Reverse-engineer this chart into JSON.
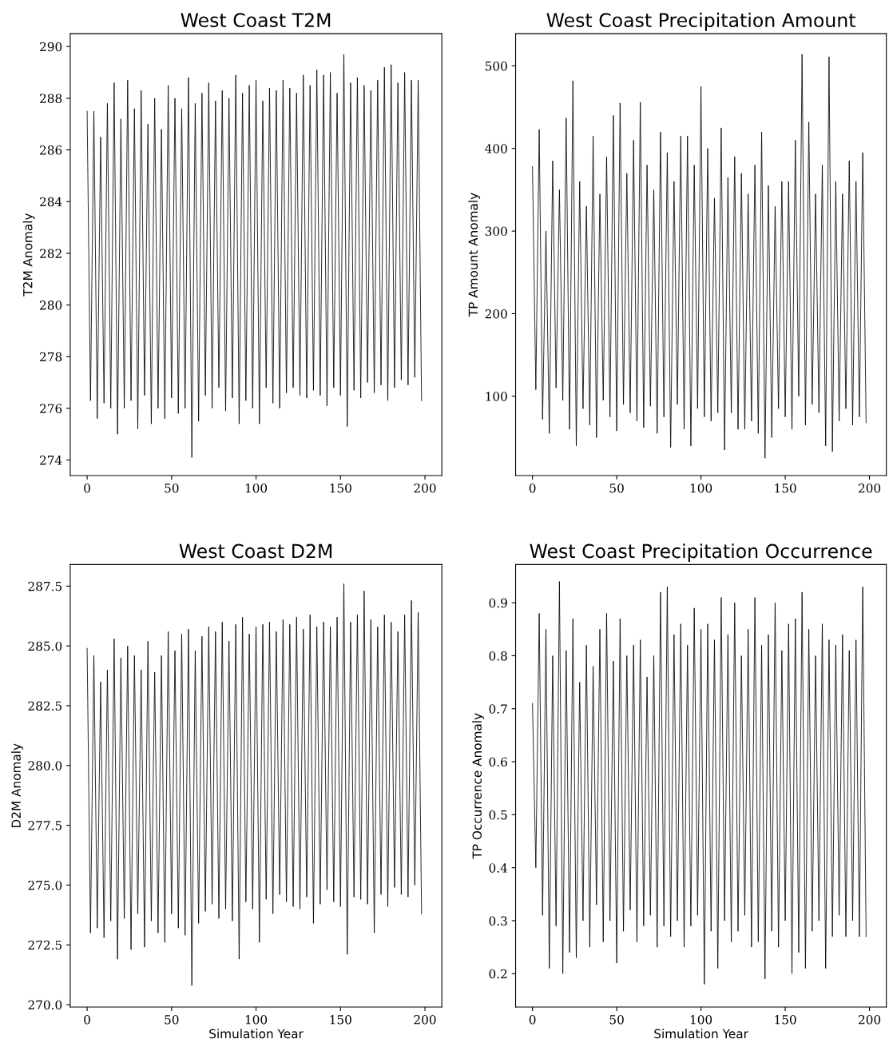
{
  "chart_data": [
    {
      "type": "line",
      "title": "West Coast T2M",
      "ylabel": "T2M Anomaly",
      "x": [
        0,
        2,
        4,
        6,
        8,
        10,
        12,
        14,
        16,
        18,
        20,
        22,
        24,
        26,
        28,
        30,
        32,
        34,
        36,
        38,
        40,
        42,
        44,
        46,
        48,
        50,
        52,
        54,
        56,
        58,
        60,
        62,
        64,
        66,
        68,
        70,
        72,
        74,
        76,
        78,
        80,
        82,
        84,
        86,
        88,
        90,
        92,
        94,
        96,
        98,
        100,
        102,
        104,
        106,
        108,
        110,
        112,
        114,
        116,
        118,
        120,
        122,
        124,
        126,
        128,
        130,
        132,
        134,
        136,
        138,
        140,
        142,
        144,
        146,
        148,
        150,
        152,
        154,
        156,
        158,
        160,
        162,
        164,
        166,
        168,
        170,
        172,
        174,
        176,
        178,
        180,
        182,
        184,
        186,
        188,
        190,
        192,
        194,
        196,
        198
      ],
      "series": [
        {
          "color": "#000000",
          "values": [
            287.5,
            276.3,
            287.5,
            275.6,
            286.5,
            276.2,
            287.8,
            276.0,
            288.6,
            275.0,
            287.2,
            276.0,
            288.7,
            276.3,
            287.6,
            275.2,
            288.3,
            276.5,
            287.0,
            275.4,
            288.0,
            276.0,
            286.8,
            275.6,
            288.5,
            276.4,
            288.0,
            275.8,
            287.6,
            276.0,
            288.8,
            274.1,
            287.8,
            275.5,
            288.2,
            276.5,
            288.6,
            276.0,
            287.9,
            276.8,
            288.3,
            275.9,
            288.0,
            276.4,
            288.9,
            275.4,
            288.2,
            276.3,
            288.5,
            276.0,
            288.7,
            275.4,
            287.9,
            276.8,
            288.4,
            276.2,
            288.3,
            276.0,
            288.7,
            276.6,
            288.4,
            276.8,
            288.2,
            276.5,
            288.9,
            276.4,
            288.5,
            276.7,
            289.1,
            276.5,
            288.9,
            276.1,
            289.0,
            276.8,
            288.2,
            276.5,
            289.7,
            275.3,
            288.6,
            276.7,
            288.8,
            276.4,
            288.5,
            277.0,
            288.3,
            276.6,
            288.7,
            276.9,
            289.2,
            276.3,
            289.3,
            276.8,
            288.6,
            277.1,
            289.0,
            276.9,
            288.7,
            277.2,
            288.7,
            276.3
          ]
        }
      ],
      "xlim": [
        -10,
        210
      ],
      "xticks": [
        0,
        50,
        100,
        150,
        200
      ],
      "ylim": [
        273.4,
        290.5
      ],
      "yticks": [
        274,
        276,
        278,
        280,
        282,
        284,
        286,
        288,
        290
      ],
      "grid": false,
      "legend": false,
      "marker": "none",
      "line_style": "solid"
    },
    {
      "type": "line",
      "title": "West Coast Precipitation Amount",
      "ylabel": "TP Amount Anomaly",
      "x": [
        0,
        2,
        4,
        6,
        8,
        10,
        12,
        14,
        16,
        18,
        20,
        22,
        24,
        26,
        28,
        30,
        32,
        34,
        36,
        38,
        40,
        42,
        44,
        46,
        48,
        50,
        52,
        54,
        56,
        58,
        60,
        62,
        64,
        66,
        68,
        70,
        72,
        74,
        76,
        78,
        80,
        82,
        84,
        86,
        88,
        90,
        92,
        94,
        96,
        98,
        100,
        102,
        104,
        106,
        108,
        110,
        112,
        114,
        116,
        118,
        120,
        122,
        124,
        126,
        128,
        130,
        132,
        134,
        136,
        138,
        140,
        142,
        144,
        146,
        148,
        150,
        152,
        154,
        156,
        158,
        160,
        162,
        164,
        166,
        168,
        170,
        172,
        174,
        176,
        178,
        180,
        182,
        184,
        186,
        188,
        190,
        192,
        194,
        196,
        198
      ],
      "series": [
        {
          "color": "#000000",
          "values": [
            378,
            108,
            423,
            72,
            300,
            55,
            385,
            110,
            350,
            95,
            437,
            60,
            482,
            40,
            360,
            85,
            330,
            65,
            415,
            50,
            345,
            95,
            390,
            75,
            440,
            58,
            455,
            90,
            370,
            80,
            410,
            70,
            456,
            62,
            380,
            88,
            350,
            55,
            420,
            75,
            395,
            38,
            360,
            90,
            415,
            60,
            415,
            40,
            380,
            85,
            475,
            75,
            400,
            70,
            340,
            80,
            425,
            35,
            365,
            80,
            390,
            60,
            370,
            60,
            345,
            70,
            380,
            55,
            420,
            25,
            355,
            50,
            330,
            85,
            360,
            75,
            360,
            60,
            410,
            100,
            514,
            65,
            432,
            90,
            345,
            80,
            380,
            40,
            511,
            33,
            360,
            70,
            345,
            85,
            385,
            65,
            360,
            75,
            395,
            68
          ]
        }
      ],
      "xlim": [
        -10,
        210
      ],
      "xticks": [
        0,
        50,
        100,
        150,
        200
      ],
      "ylim": [
        4,
        539
      ],
      "yticks": [
        100,
        200,
        300,
        400,
        500
      ],
      "grid": false,
      "legend": false,
      "marker": "none",
      "line_style": "solid"
    },
    {
      "type": "line",
      "title": "West Coast D2M",
      "ylabel": "D2M Anomaly",
      "xlabel": "Simulation Year",
      "x": [
        0,
        2,
        4,
        6,
        8,
        10,
        12,
        14,
        16,
        18,
        20,
        22,
        24,
        26,
        28,
        30,
        32,
        34,
        36,
        38,
        40,
        42,
        44,
        46,
        48,
        50,
        52,
        54,
        56,
        58,
        60,
        62,
        64,
        66,
        68,
        70,
        72,
        74,
        76,
        78,
        80,
        82,
        84,
        86,
        88,
        90,
        92,
        94,
        96,
        98,
        100,
        102,
        104,
        106,
        108,
        110,
        112,
        114,
        116,
        118,
        120,
        122,
        124,
        126,
        128,
        130,
        132,
        134,
        136,
        138,
        140,
        142,
        144,
        146,
        148,
        150,
        152,
        154,
        156,
        158,
        160,
        162,
        164,
        166,
        168,
        170,
        172,
        174,
        176,
        178,
        180,
        182,
        184,
        186,
        188,
        190,
        192,
        194,
        196,
        198
      ],
      "series": [
        {
          "color": "#000000",
          "values": [
            284.9,
            273.0,
            284.6,
            273.2,
            283.5,
            272.8,
            284.0,
            273.5,
            285.3,
            271.9,
            284.5,
            273.6,
            285.0,
            272.3,
            284.6,
            273.8,
            284.0,
            272.4,
            285.2,
            273.5,
            283.9,
            273.0,
            284.6,
            272.6,
            285.6,
            273.8,
            284.8,
            273.2,
            285.5,
            272.9,
            285.7,
            270.8,
            284.8,
            273.4,
            285.4,
            273.9,
            285.8,
            274.2,
            285.6,
            273.6,
            286.0,
            274.0,
            285.2,
            273.5,
            285.9,
            271.9,
            286.2,
            274.3,
            285.5,
            274.0,
            285.8,
            272.6,
            285.9,
            274.4,
            286.0,
            273.8,
            285.6,
            274.6,
            286.1,
            274.3,
            285.9,
            274.1,
            286.2,
            274.0,
            285.7,
            274.5,
            286.3,
            273.4,
            285.8,
            274.2,
            286.0,
            274.8,
            285.8,
            274.3,
            286.2,
            274.1,
            287.6,
            272.1,
            286.0,
            274.5,
            286.3,
            274.4,
            287.3,
            274.2,
            286.1,
            273.0,
            285.8,
            274.6,
            286.3,
            274.1,
            286.0,
            274.9,
            285.6,
            274.6,
            286.3,
            274.5,
            286.9,
            275.0,
            286.4,
            273.8
          ]
        }
      ],
      "xlim": [
        -10,
        210
      ],
      "xticks": [
        0,
        50,
        100,
        150,
        200
      ],
      "ylim": [
        269.9,
        288.4
      ],
      "yticks": [
        {
          "value": 270,
          "label": "270.0"
        },
        272.5,
        {
          "value": 275,
          "label": "275.0"
        },
        277.5,
        {
          "value": 280,
          "label": "280.0"
        },
        282.5,
        {
          "value": 285,
          "label": "285.0"
        },
        287.5
      ],
      "grid": false,
      "legend": false,
      "marker": "none",
      "line_style": "solid"
    },
    {
      "type": "line",
      "title": "West Coast Precipitation Occurrence",
      "ylabel": "TP Occurrence Anomaly",
      "xlabel": "Simulation Year",
      "x": [
        0,
        2,
        4,
        6,
        8,
        10,
        12,
        14,
        16,
        18,
        20,
        22,
        24,
        26,
        28,
        30,
        32,
        34,
        36,
        38,
        40,
        42,
        44,
        46,
        48,
        50,
        52,
        54,
        56,
        58,
        60,
        62,
        64,
        66,
        68,
        70,
        72,
        74,
        76,
        78,
        80,
        82,
        84,
        86,
        88,
        90,
        92,
        94,
        96,
        98,
        100,
        102,
        104,
        106,
        108,
        110,
        112,
        114,
        116,
        118,
        120,
        122,
        124,
        126,
        128,
        130,
        132,
        134,
        136,
        138,
        140,
        142,
        144,
        146,
        148,
        150,
        152,
        154,
        156,
        158,
        160,
        162,
        164,
        166,
        168,
        170,
        172,
        174,
        176,
        178,
        180,
        182,
        184,
        186,
        188,
        190,
        192,
        194,
        196,
        198
      ],
      "series": [
        {
          "color": "#000000",
          "values": [
            0.71,
            0.4,
            0.88,
            0.31,
            0.85,
            0.21,
            0.8,
            0.29,
            0.94,
            0.2,
            0.81,
            0.24,
            0.87,
            0.23,
            0.75,
            0.3,
            0.82,
            0.25,
            0.78,
            0.33,
            0.85,
            0.26,
            0.88,
            0.3,
            0.79,
            0.22,
            0.87,
            0.28,
            0.8,
            0.32,
            0.82,
            0.26,
            0.83,
            0.29,
            0.76,
            0.31,
            0.8,
            0.25,
            0.92,
            0.29,
            0.93,
            0.27,
            0.84,
            0.3,
            0.86,
            0.25,
            0.82,
            0.29,
            0.89,
            0.31,
            0.85,
            0.18,
            0.86,
            0.28,
            0.83,
            0.21,
            0.91,
            0.3,
            0.84,
            0.26,
            0.9,
            0.28,
            0.8,
            0.31,
            0.85,
            0.25,
            0.91,
            0.26,
            0.82,
            0.19,
            0.84,
            0.28,
            0.9,
            0.25,
            0.81,
            0.3,
            0.86,
            0.2,
            0.87,
            0.24,
            0.92,
            0.21,
            0.85,
            0.28,
            0.8,
            0.3,
            0.86,
            0.21,
            0.83,
            0.27,
            0.82,
            0.31,
            0.84,
            0.27,
            0.81,
            0.3,
            0.83,
            0.27,
            0.93,
            0.27
          ]
        }
      ],
      "xlim": [
        -10,
        210
      ],
      "xticks": [
        0,
        50,
        100,
        150,
        200
      ],
      "ylim": [
        0.137,
        0.972
      ],
      "yticks": [
        0.2,
        0.3,
        0.4,
        0.5,
        0.6,
        0.7,
        0.8,
        0.9
      ],
      "grid": false,
      "legend": false,
      "marker": "none",
      "line_style": "solid"
    }
  ]
}
